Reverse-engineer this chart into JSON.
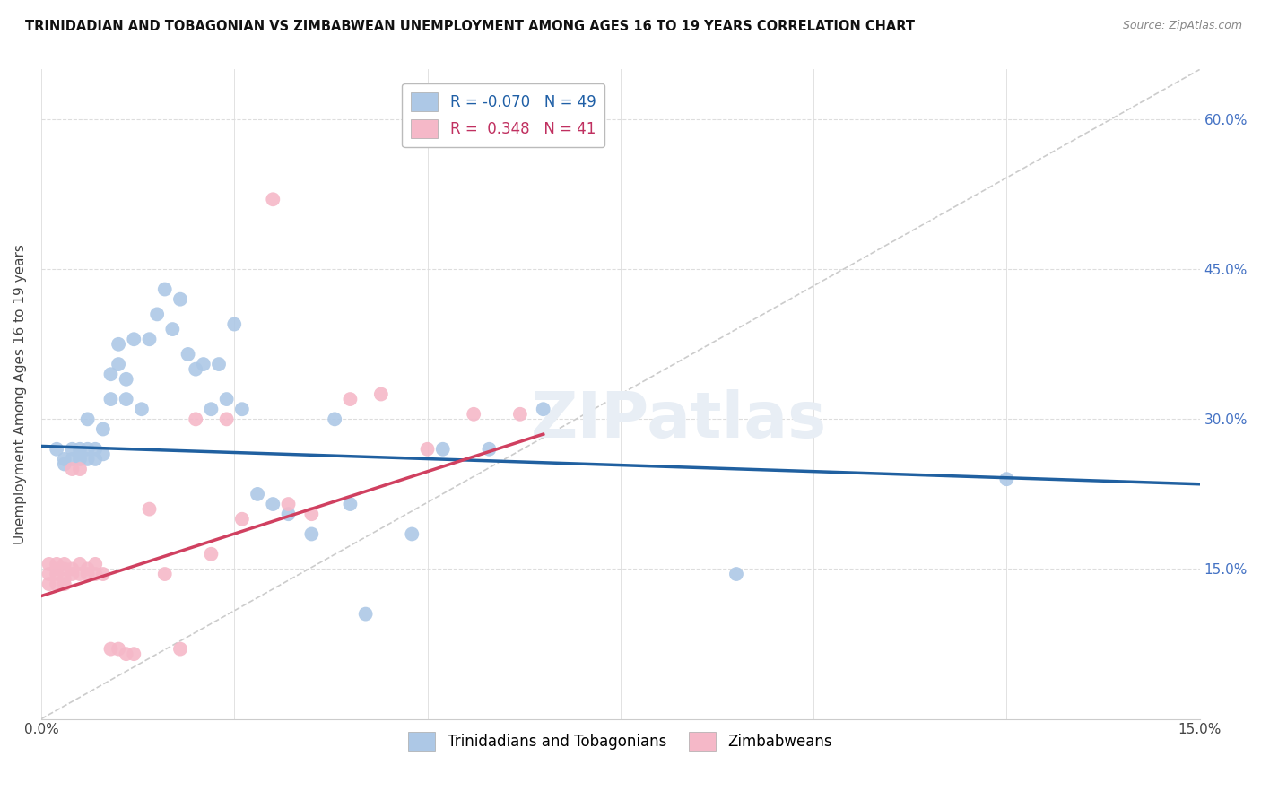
{
  "title": "TRINIDADIAN AND TOBAGONIAN VS ZIMBABWEAN UNEMPLOYMENT AMONG AGES 16 TO 19 YEARS CORRELATION CHART",
  "source": "Source: ZipAtlas.com",
  "ylabel": "Unemployment Among Ages 16 to 19 years",
  "xlim": [
    0.0,
    0.15
  ],
  "ylim": [
    0.0,
    0.65
  ],
  "xticks": [
    0.0,
    0.025,
    0.05,
    0.075,
    0.1,
    0.125,
    0.15
  ],
  "xticklabels_show": [
    "0.0%",
    "",
    "",
    "",
    "",
    "",
    "15.0%"
  ],
  "yticks_right": [
    0.15,
    0.3,
    0.45,
    0.6
  ],
  "yticklabels_right": [
    "15.0%",
    "30.0%",
    "45.0%",
    "60.0%"
  ],
  "legend_blue_label": "Trinidadians and Tobagonians",
  "legend_pink_label": "Zimbabweans",
  "R_blue": -0.07,
  "N_blue": 49,
  "R_pink": 0.348,
  "N_pink": 41,
  "blue_color": "#adc8e6",
  "pink_color": "#f5b8c8",
  "blue_line_color": "#2060a0",
  "pink_line_color": "#d04060",
  "diagonal_color": "#cccccc",
  "background_color": "#ffffff",
  "blue_dots_x": [
    0.002,
    0.003,
    0.003,
    0.004,
    0.004,
    0.005,
    0.005,
    0.005,
    0.006,
    0.006,
    0.006,
    0.007,
    0.007,
    0.008,
    0.008,
    0.009,
    0.009,
    0.01,
    0.01,
    0.011,
    0.011,
    0.012,
    0.013,
    0.014,
    0.015,
    0.016,
    0.017,
    0.018,
    0.019,
    0.02,
    0.021,
    0.022,
    0.023,
    0.024,
    0.025,
    0.026,
    0.028,
    0.03,
    0.032,
    0.035,
    0.038,
    0.04,
    0.042,
    0.048,
    0.052,
    0.058,
    0.065,
    0.09,
    0.125
  ],
  "blue_dots_y": [
    0.27,
    0.26,
    0.255,
    0.27,
    0.26,
    0.27,
    0.265,
    0.26,
    0.3,
    0.27,
    0.26,
    0.27,
    0.26,
    0.29,
    0.265,
    0.345,
    0.32,
    0.375,
    0.355,
    0.34,
    0.32,
    0.38,
    0.31,
    0.38,
    0.405,
    0.43,
    0.39,
    0.42,
    0.365,
    0.35,
    0.355,
    0.31,
    0.355,
    0.32,
    0.395,
    0.31,
    0.225,
    0.215,
    0.205,
    0.185,
    0.3,
    0.215,
    0.105,
    0.185,
    0.27,
    0.27,
    0.31,
    0.145,
    0.24
  ],
  "pink_dots_x": [
    0.001,
    0.001,
    0.001,
    0.002,
    0.002,
    0.002,
    0.002,
    0.003,
    0.003,
    0.003,
    0.003,
    0.004,
    0.004,
    0.004,
    0.005,
    0.005,
    0.005,
    0.006,
    0.006,
    0.007,
    0.007,
    0.008,
    0.009,
    0.01,
    0.011,
    0.012,
    0.014,
    0.016,
    0.018,
    0.02,
    0.022,
    0.024,
    0.026,
    0.03,
    0.032,
    0.035,
    0.04,
    0.044,
    0.05,
    0.056,
    0.062
  ],
  "pink_dots_y": [
    0.155,
    0.145,
    0.135,
    0.145,
    0.15,
    0.155,
    0.135,
    0.155,
    0.14,
    0.15,
    0.135,
    0.15,
    0.145,
    0.25,
    0.155,
    0.145,
    0.25,
    0.15,
    0.145,
    0.155,
    0.145,
    0.145,
    0.07,
    0.07,
    0.065,
    0.065,
    0.21,
    0.145,
    0.07,
    0.3,
    0.165,
    0.3,
    0.2,
    0.52,
    0.215,
    0.205,
    0.32,
    0.325,
    0.27,
    0.305,
    0.305
  ],
  "blue_trend_x0": 0.0,
  "blue_trend_y0": 0.273,
  "blue_trend_x1": 0.15,
  "blue_trend_y1": 0.235,
  "pink_trend_x0": 0.0,
  "pink_trend_y0": 0.123,
  "pink_trend_x1": 0.065,
  "pink_trend_y1": 0.285
}
